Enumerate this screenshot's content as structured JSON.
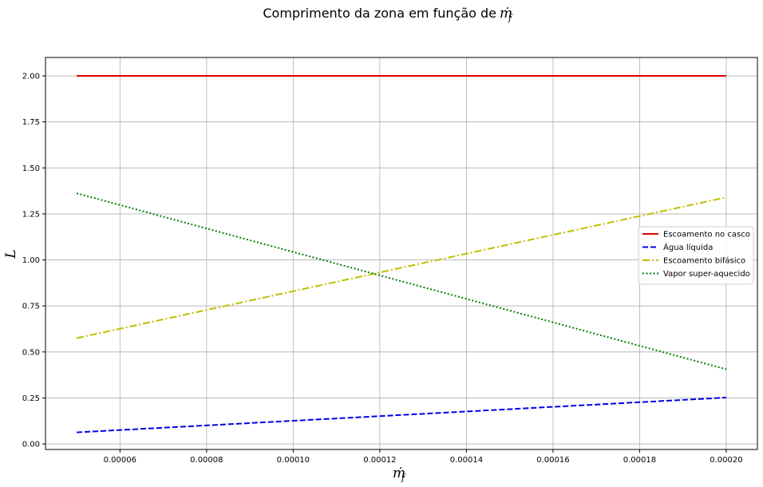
{
  "chart_data": {
    "type": "line",
    "title": "Comprimento da zona em função de",
    "title_math": "ṁ",
    "title_math_sub": "f",
    "xlabel": "ṁ",
    "xlabel_sub": "f",
    "ylabel": "L",
    "xlim": [
      4.28e-05,
      0.0002072
    ],
    "ylim": [
      -0.03,
      2.1
    ],
    "xticks": [
      6e-05,
      8e-05,
      0.0001,
      0.00012,
      0.00014,
      0.00016,
      0.00018,
      0.0002
    ],
    "xtick_labels": [
      "0.00006",
      "0.00008",
      "0.00010",
      "0.00012",
      "0.00014",
      "0.00016",
      "0.00018",
      "0.00020"
    ],
    "yticks": [
      0.0,
      0.25,
      0.5,
      0.75,
      1.0,
      1.25,
      1.5,
      1.75,
      2.0
    ],
    "ytick_labels": [
      "0.00",
      "0.25",
      "0.50",
      "0.75",
      "1.00",
      "1.25",
      "1.50",
      "1.75",
      "2.00"
    ],
    "grid": true,
    "legend_position": "center-right",
    "series": [
      {
        "name": "Escoamento no casco",
        "color": "#e00000",
        "style": "solid",
        "x": [
          5e-05,
          0.0002
        ],
        "y": [
          2.0,
          2.0
        ]
      },
      {
        "name": "Água líquida",
        "color": "#0000ee",
        "style": "dashed",
        "x": [
          5e-05,
          0.0002
        ],
        "y": [
          0.063,
          0.252
        ]
      },
      {
        "name": "Escoamento bifásico",
        "color": "#bfbf00",
        "style": "dashdot",
        "x": [
          5e-05,
          0.0002
        ],
        "y": [
          0.575,
          1.34
        ]
      },
      {
        "name": "Vapor super-aquecido",
        "color": "#008000",
        "style": "dotted",
        "x": [
          5e-05,
          0.0002
        ],
        "y": [
          1.362,
          0.406
        ]
      }
    ]
  }
}
